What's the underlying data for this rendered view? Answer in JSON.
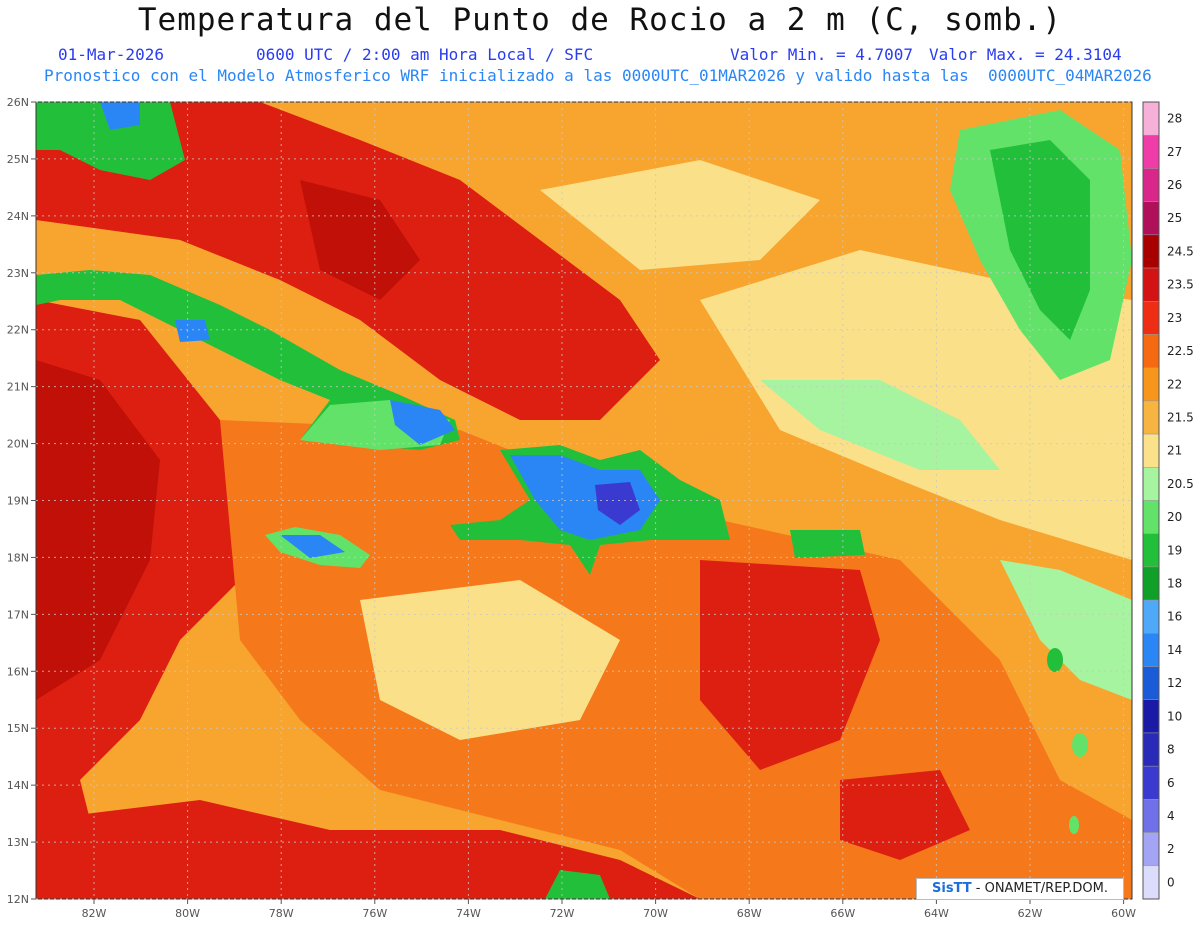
{
  "header": {
    "title": "Temperatura del Punto de Rocio a 2 m (C, somb.)",
    "date": "01-Mar-2026",
    "time": "0600 UTC / 2:00 am Hora Local / SFC",
    "min": "Valor Min. = 4.7007",
    "max": "Valor Max. = 24.3104",
    "subtitle": "Pronostico con el Modelo Atmosferico WRF inicializado a las 0000UTC_01MAR2026 y valido hasta las  0000UTC_04MAR2026"
  },
  "axes": {
    "lat_labels": [
      "26N",
      "25N",
      "24N",
      "23N",
      "22N",
      "21N",
      "20N",
      "19N",
      "18N",
      "17N",
      "16N",
      "15N",
      "14N",
      "13N",
      "12N"
    ],
    "lon_labels": [
      "82W",
      "80W",
      "78W",
      "76W",
      "74W",
      "72W",
      "70W",
      "68W",
      "66W",
      "64W",
      "62W",
      "60W"
    ]
  },
  "legend": {
    "levels": [
      "28",
      "27",
      "26",
      "25",
      "24.5",
      "23.5",
      "23",
      "22.5",
      "22",
      "21.5",
      "21",
      "20.5",
      "20",
      "19",
      "18",
      "16",
      "14",
      "12",
      "10",
      "8",
      "6",
      "4",
      "2",
      "0"
    ],
    "colors": [
      "#f7b0d8",
      "#f03ca8",
      "#d8268a",
      "#b0105a",
      "#a80000",
      "#d31313",
      "#ee2d14",
      "#f56a10",
      "#f7961a",
      "#f8b440",
      "#fbe28a",
      "#a6f3a0",
      "#63e26a",
      "#22c03a",
      "#10a028",
      "#50a8f8",
      "#2a86f5",
      "#1a5cd8",
      "#1a1aa6",
      "#2a2ab8",
      "#3a3ad0",
      "#7070e8",
      "#a4a4f4",
      "#dcdcfc"
    ]
  },
  "credit": {
    "logo": "SisTT",
    "text": " - ONAMET/REP.DOM."
  },
  "palette": {
    "sea_red": "#dc1f10",
    "sea_darkred": "#c01008",
    "sea_orange": "#f5791a",
    "sea_lightorange": "#f8a530",
    "sea_yellow": "#fbe08a",
    "land_green": "#22c03a",
    "land_lightgreen": "#63e26a",
    "land_blue": "#2a86f5",
    "land_darkblue": "#3a3ad0"
  }
}
